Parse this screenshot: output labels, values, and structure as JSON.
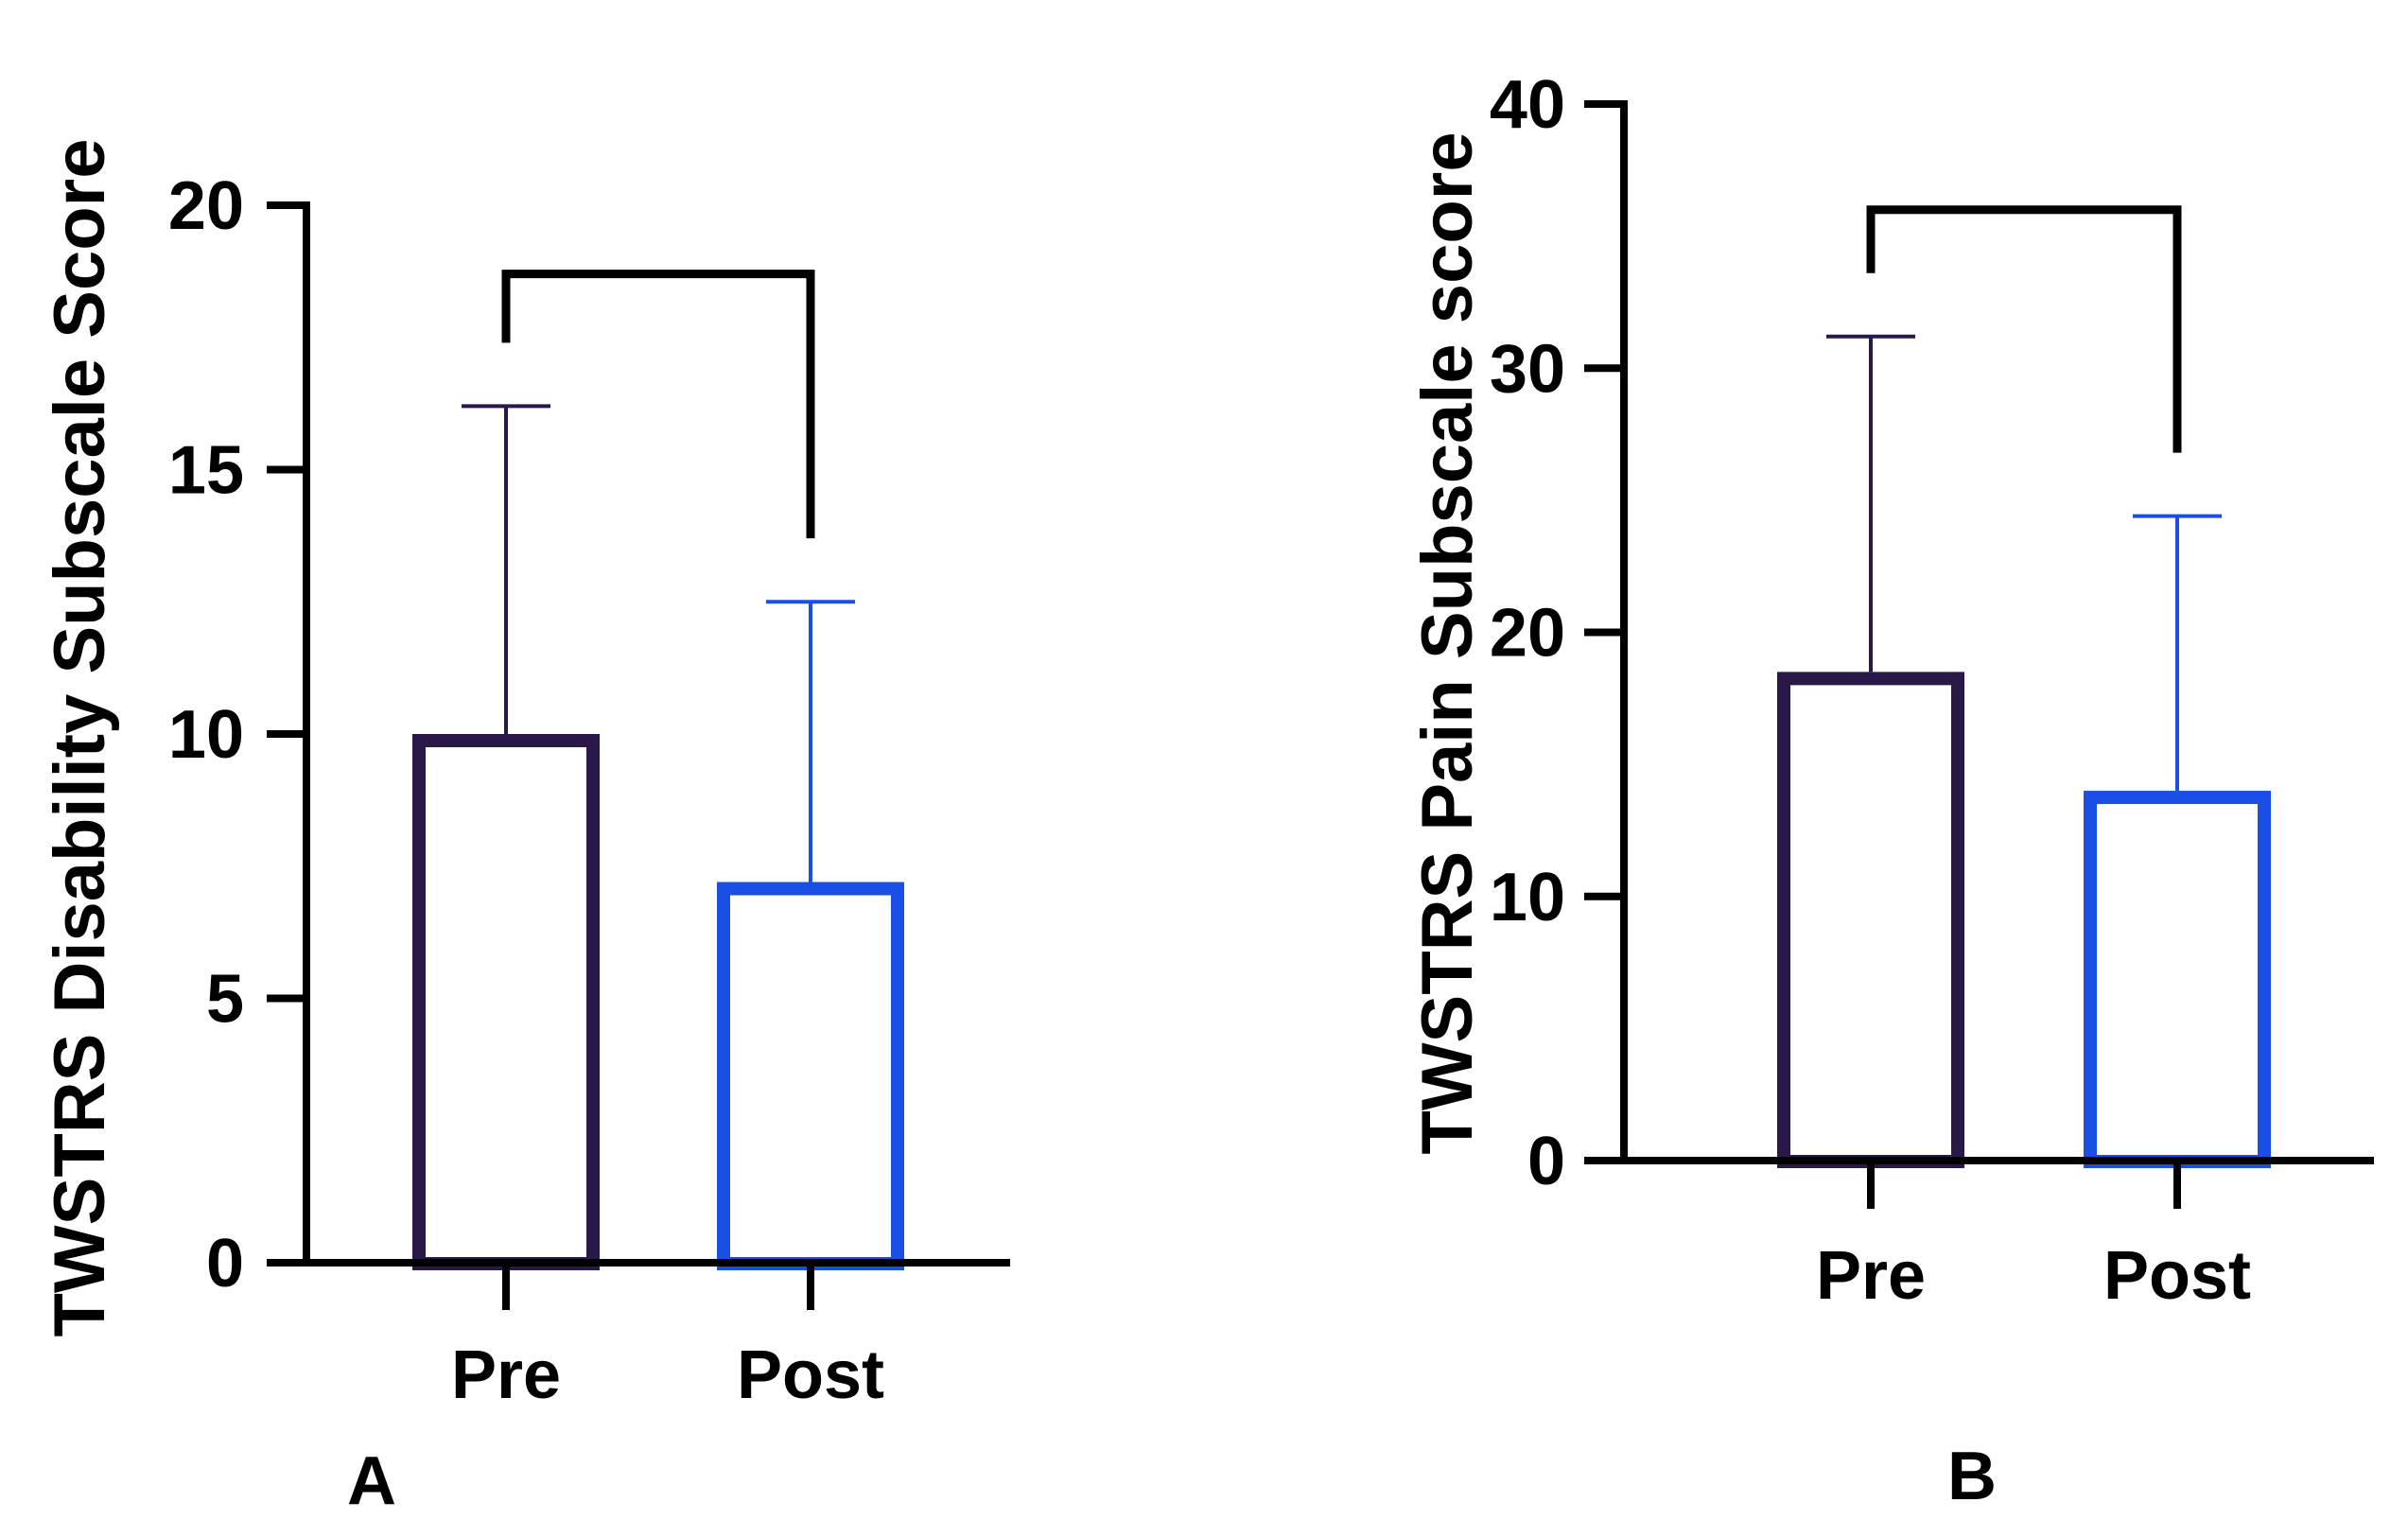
{
  "chart_data": [
    {
      "type": "bar",
      "panel": "A",
      "ylabel": "TWSTRS Disability Subscale Score",
      "xlabel": "",
      "categories": [
        "Pre",
        "Post"
      ],
      "values": [
        10.0,
        7.2
      ],
      "error_upper": [
        16.2,
        12.5
      ],
      "ylim": [
        0,
        20
      ],
      "yticks": [
        "0",
        "5",
        "10",
        "15",
        "20"
      ],
      "ytick_values": [
        0,
        5,
        10,
        15,
        20
      ],
      "bar_colors": [
        "#2a1848",
        "#1a4fe6"
      ],
      "bracket": {
        "from": "Pre",
        "to": "Post",
        "top": 18.7,
        "left_end": 17.4,
        "right_end": 13.7
      },
      "legend": "none",
      "grid": false
    },
    {
      "type": "bar",
      "panel": "B",
      "ylabel": "TWSTRS Pain Subscale score",
      "xlabel": "",
      "categories": [
        "Pre",
        "Post"
      ],
      "values": [
        18.5,
        14.0
      ],
      "error_upper": [
        31.2,
        24.4
      ],
      "ylim": [
        0,
        40
      ],
      "yticks": [
        "0",
        "10",
        "20",
        "30",
        "40"
      ],
      "ytick_values": [
        0,
        10,
        20,
        30,
        40
      ],
      "bar_colors": [
        "#2a1848",
        "#1a4fe6"
      ],
      "bracket": {
        "from": "Pre",
        "to": "Post",
        "top": 36.0,
        "left_end": 33.6,
        "right_end": 26.8
      },
      "legend": "none",
      "grid": false
    }
  ]
}
